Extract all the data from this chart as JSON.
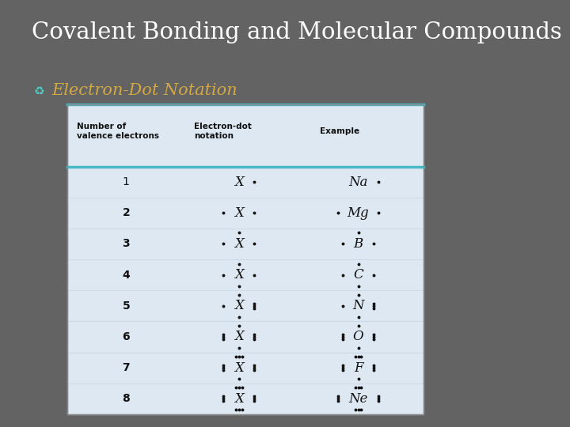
{
  "bg_color": "#636363",
  "title": "Covalent Bonding and Molecular Compounds",
  "title_color": "#ffffff",
  "subtitle": "Electron-Dot Notation",
  "subtitle_color": "#d4a843",
  "bullet_color": "#4ecdc4",
  "table_bg": "#dde8f2",
  "table_border_color": "#4ab8c4",
  "col_headers": [
    "Number of\nvalence electrons",
    "Electron-dot\nnotation",
    "Example"
  ],
  "electron_notations": [
    {
      "num": "1",
      "symbol": "X",
      "ex_sym": "Na",
      "n_e": 1
    },
    {
      "num": "2",
      "symbol": "X",
      "ex_sym": "Mg",
      "n_e": 2
    },
    {
      "num": "3",
      "symbol": "X",
      "ex_sym": "B",
      "n_e": 3
    },
    {
      "num": "4",
      "symbol": "X",
      "ex_sym": "C",
      "n_e": 4
    },
    {
      "num": "5",
      "symbol": "X",
      "ex_sym": "N",
      "n_e": 5
    },
    {
      "num": "6",
      "symbol": "X",
      "ex_sym": "O",
      "n_e": 6
    },
    {
      "num": "7",
      "symbol": "X",
      "ex_sym": "F",
      "n_e": 7
    },
    {
      "num": "8",
      "symbol": "X",
      "ex_sym": "Ne",
      "n_e": 8
    }
  ]
}
